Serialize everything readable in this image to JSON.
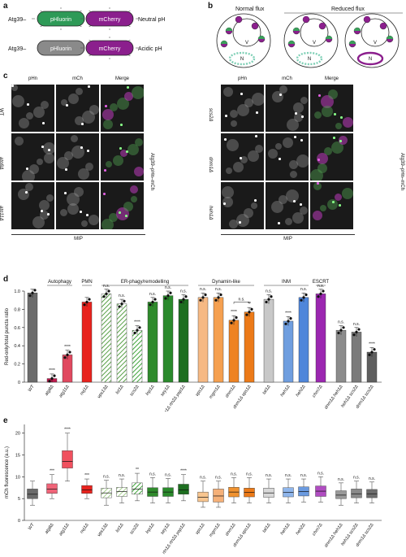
{
  "panel_a": {
    "letter": "a",
    "constructs": [
      {
        "name": "Atg39–",
        "domain1": "pHluorin",
        "domain2": "mCherry",
        "condition": "Neutral pH",
        "color1": "#2e9a57"
      },
      {
        "name": "Atg39–",
        "domain1": "pHluorin",
        "domain2": "mCherry",
        "condition": "Acidic pH",
        "color1": "#8a8a8a"
      }
    ],
    "mcherry_color": "#8b1f8d"
  },
  "panel_b": {
    "letter": "b",
    "normal": "Normal flux",
    "reduced": "Reduced flux",
    "v_label": "V",
    "n_label": "N"
  },
  "panel_c": {
    "letter": "c",
    "columns": [
      "pHn",
      "mCh",
      "Merge"
    ],
    "left_rows": [
      "WT",
      "atg8Δ",
      "atg11Δ"
    ],
    "right_rows": [
      "scs2Δ",
      "dnm1Δ",
      "heh1Δ"
    ],
    "side_label": "Atg39–pHn–mCh",
    "mip": "MIP"
  },
  "panel_d": {
    "letter": "d",
    "ylabel": "Red-only/total puncta ratio",
    "groups": [
      "Autophagy",
      "PMN",
      "ER-phagy/remodelling",
      "Dynamin-like",
      "INM",
      "ESCRT"
    ],
    "yticks": [
      "0",
      "0.2",
      "0.4",
      "0.6",
      "0.8",
      "1.0"
    ],
    "chart_data": {
      "type": "bar",
      "ylim": [
        0,
        1.0
      ],
      "categories": [
        "WT",
        "atg8Δ",
        "atg11Δ",
        "nvj1Δ",
        "vps13Δ",
        "lst1Δ",
        "scs2Δ",
        "lnp1Δ",
        "sey1Δ",
        "rtn1Δ rtn2Δ yop1Δ",
        "vps1Δ",
        "mgm1Δ",
        "dnm1Δ",
        "dnm1Δ vps1Δ",
        "tal1Δ",
        "heh1Δ",
        "heh2Δ",
        "chm7Δ",
        "dnm1Δ heh1Δ",
        "heh1Δ scs2Δ",
        "dnm1Δ scs2Δ"
      ],
      "values": [
        0.98,
        0.04,
        0.3,
        0.88,
        0.97,
        0.86,
        0.57,
        0.88,
        0.95,
        0.91,
        0.93,
        0.93,
        0.68,
        0.77,
        0.91,
        0.67,
        0.93,
        0.97,
        0.57,
        0.55,
        0.33
      ],
      "significance": [
        "",
        "****",
        "****",
        "",
        "n.s.",
        "n.s.",
        "****",
        "n.s.",
        "n.s.",
        "n.s.",
        "n.s.",
        "n.s.",
        "****",
        "**",
        "n.s.",
        "****",
        "n.s.",
        "n.s.",
        "n.s.",
        "n.s.",
        "****"
      ],
      "colors": [
        "#6b6b6b",
        "#c0194e",
        "#e0495f",
        "#e8221d",
        "#59a048",
        "#59a048",
        "#3fa33a",
        "#2f8a2c",
        "#2a8a2c",
        "#1d6e20",
        "#f6b984",
        "#f5a050",
        "#ee8323",
        "#ec7a18",
        "#c8c8c8",
        "#6f9edf",
        "#4f86da",
        "#9b27b0",
        "#8c8c8c",
        "#7a7a7a",
        "#5e5e5e"
      ],
      "hatched": [
        false,
        false,
        false,
        false,
        true,
        true,
        true,
        false,
        false,
        false,
        false,
        false,
        false,
        false,
        false,
        false,
        false,
        false,
        false,
        false,
        false
      ],
      "bracket": "n.s."
    }
  },
  "panel_e": {
    "letter": "e",
    "ylabel": "mCh fluorescence (a.u.)",
    "yticks": [
      "0",
      "5",
      "10",
      "15",
      "20"
    ],
    "chart_data": {
      "type": "box",
      "ylim": [
        0,
        22
      ],
      "categories": [
        "WT",
        "atg8Δ",
        "atg11Δ",
        "nvj1Δ",
        "vps13Δ",
        "lst1Δ",
        "scs2Δ",
        "lnp1Δ",
        "sey1Δ",
        "rtn1Δ rtn2Δ yop1Δ",
        "vps1Δ",
        "mgm1Δ",
        "dnm1Δ",
        "dnm1Δ vps1Δ",
        "tal1Δ",
        "heh1Δ",
        "heh2Δ",
        "chm7Δ",
        "dnm1Δ heh1Δ",
        "heh1Δ scs2Δ",
        "dnm1Δ scs2Δ"
      ],
      "boxes": [
        [
          3.5,
          5.0,
          6.0,
          7.2,
          9.0
        ],
        [
          5,
          6.2,
          7.2,
          8.4,
          10.5
        ],
        [
          9,
          12,
          13.5,
          16,
          20
        ],
        [
          5,
          6.2,
          7.0,
          8.0,
          9.5
        ],
        [
          3.5,
          5.2,
          6.3,
          7.4,
          9.2
        ],
        [
          4,
          5.5,
          6.6,
          7.6,
          9.5
        ],
        [
          4.5,
          6,
          7.2,
          8.6,
          10.8
        ],
        [
          4,
          5.5,
          6.5,
          7.5,
          9.8
        ],
        [
          4,
          5.5,
          6.5,
          7.5,
          9.6
        ],
        [
          4.5,
          6,
          7.0,
          8.3,
          10.5
        ],
        [
          3,
          4.3,
          5.3,
          6.5,
          9
        ],
        [
          3,
          4.2,
          5.6,
          7.2,
          9
        ],
        [
          4,
          5.4,
          6.5,
          7.6,
          9.8
        ],
        [
          4,
          5.4,
          6.4,
          7.4,
          9.8
        ],
        [
          4,
          5.3,
          6.3,
          7.4,
          9.5
        ],
        [
          4,
          5.4,
          6.4,
          7.5,
          9.5
        ],
        [
          4.2,
          5.6,
          6.6,
          7.7,
          9.5
        ],
        [
          4.2,
          5.5,
          6.7,
          7.9,
          10
        ],
        [
          3.5,
          5,
          5.8,
          6.8,
          8.6
        ],
        [
          4,
          5.2,
          6.1,
          7.2,
          9
        ],
        [
          4,
          5.2,
          6.1,
          7.1,
          8.8
        ]
      ],
      "significance": [
        "",
        "***",
        "****",
        "***",
        "n.s.",
        "n.s.",
        "**",
        "n.s.",
        "n.s.",
        "****",
        "n.s.",
        "n.s.",
        "n.s.",
        "n.s.",
        "n.s.",
        "n.s.",
        "n.s.",
        "n.s.",
        "n.s.",
        "n.s.",
        "n.s."
      ],
      "colors": [
        "#6b6b6b",
        "#f06478",
        "#f0505e",
        "#e8221d",
        "#a7d08f",
        "#a7d08f",
        "#3fa33a",
        "#2f8a2c",
        "#2a8a2c",
        "#1d6e20",
        "#f8c58f",
        "#f5b078",
        "#f0922f",
        "#ec7a18",
        "#d8d8d8",
        "#8fb6ec",
        "#6a9ae0",
        "#b04cc1",
        "#9a9a9a",
        "#8a8a8a",
        "#6e6e6e"
      ],
      "hatched": [
        false,
        false,
        false,
        false,
        true,
        true,
        true,
        false,
        false,
        false,
        false,
        false,
        false,
        false,
        false,
        false,
        false,
        false,
        false,
        false,
        false
      ]
    }
  }
}
